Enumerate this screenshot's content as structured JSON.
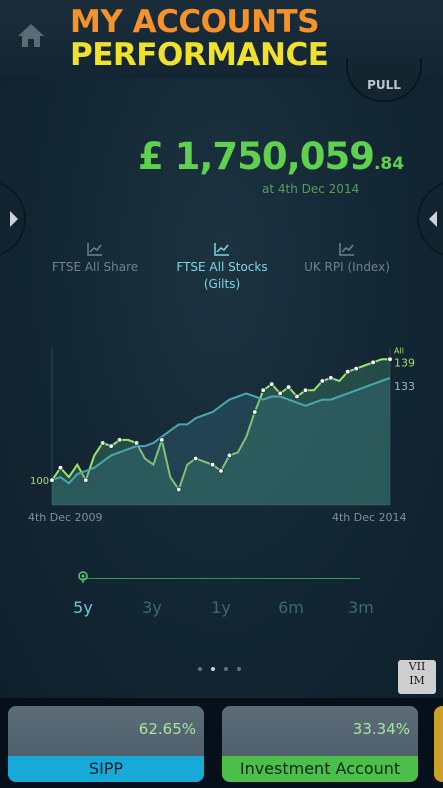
{
  "header": {
    "title_line1": "MY ACCOUNTS",
    "title_line2": "PERFORMANCE",
    "title_colors": [
      "#f6922a",
      "#f2e12a"
    ]
  },
  "pull_tab": {
    "label": "PULL"
  },
  "summary": {
    "amount_main": "£ 1,750,059",
    "amount_pence": ".84",
    "as_at": "at 4th Dec 2014"
  },
  "indices": [
    {
      "label": "FTSE All Share",
      "active": false,
      "icon": "line-chart-icon"
    },
    {
      "label": "FTSE All Stocks\n(Gilts)",
      "active": true,
      "icon": "line-chart-icon"
    },
    {
      "label": "UK RPI (Index)",
      "active": false,
      "icon": "line-chart-icon"
    }
  ],
  "chart_data": {
    "type": "line",
    "x_start_label": "4th Dec 2009",
    "x_end_label": "4th Dec 2014",
    "start_label": "100",
    "end_labels": [
      "All",
      "139",
      "133"
    ],
    "series": [
      {
        "values": [
          100,
          104,
          101,
          105,
          100,
          108,
          112,
          111,
          113,
          113,
          112,
          107,
          105,
          113,
          101,
          97,
          105,
          107,
          106,
          105,
          103,
          108,
          109,
          114,
          122,
          129,
          131,
          128,
          130,
          127,
          129,
          129,
          132,
          133,
          132,
          135,
          136,
          137,
          138,
          139,
          139
        ],
        "color": "#9fe26a"
      },
      {
        "values": [
          100,
          101,
          99,
          102,
          103,
          104,
          106,
          108,
          109,
          110,
          111,
          111,
          112,
          114,
          116,
          118,
          118,
          120,
          121,
          122,
          124,
          126,
          127,
          128,
          127,
          126,
          127,
          127,
          126,
          125,
          124,
          125,
          126,
          126,
          127,
          128,
          129,
          130,
          131,
          132,
          133
        ],
        "color": "#4aa7b0"
      }
    ],
    "points": [
      {
        "x": 0,
        "y": 100
      },
      {
        "x": 1,
        "y": 104
      },
      {
        "x": 4,
        "y": 100
      },
      {
        "x": 6,
        "y": 112
      },
      {
        "x": 7,
        "y": 111
      },
      {
        "x": 8,
        "y": 113
      },
      {
        "x": 10,
        "y": 112
      },
      {
        "x": 13,
        "y": 113
      },
      {
        "x": 15,
        "y": 97
      },
      {
        "x": 17,
        "y": 107
      },
      {
        "x": 19,
        "y": 105
      },
      {
        "x": 20,
        "y": 103
      },
      {
        "x": 21,
        "y": 108
      },
      {
        "x": 24,
        "y": 122
      },
      {
        "x": 25,
        "y": 129
      },
      {
        "x": 26,
        "y": 131
      },
      {
        "x": 27,
        "y": 128
      },
      {
        "x": 28,
        "y": 130
      },
      {
        "x": 29,
        "y": 127
      },
      {
        "x": 30,
        "y": 129
      },
      {
        "x": 32,
        "y": 132
      },
      {
        "x": 33,
        "y": 133
      },
      {
        "x": 35,
        "y": 135
      },
      {
        "x": 36,
        "y": 136
      },
      {
        "x": 38,
        "y": 138
      },
      {
        "x": 40,
        "y": 139
      }
    ],
    "ylim": [
      92,
      142
    ]
  },
  "ranges": [
    {
      "label": "5y",
      "active": true
    },
    {
      "label": "3y",
      "active": false
    },
    {
      "label": "1y",
      "active": false
    },
    {
      "label": "6m",
      "active": false
    },
    {
      "label": "3m",
      "active": false
    }
  ],
  "page_dots": [
    false,
    true,
    false,
    false
  ],
  "logo_text": [
    "VII",
    "IM"
  ],
  "accounts": [
    {
      "name": "SIPP",
      "percent": "62.65%"
    },
    {
      "name": "Investment Account",
      "percent": "33.34%"
    }
  ]
}
